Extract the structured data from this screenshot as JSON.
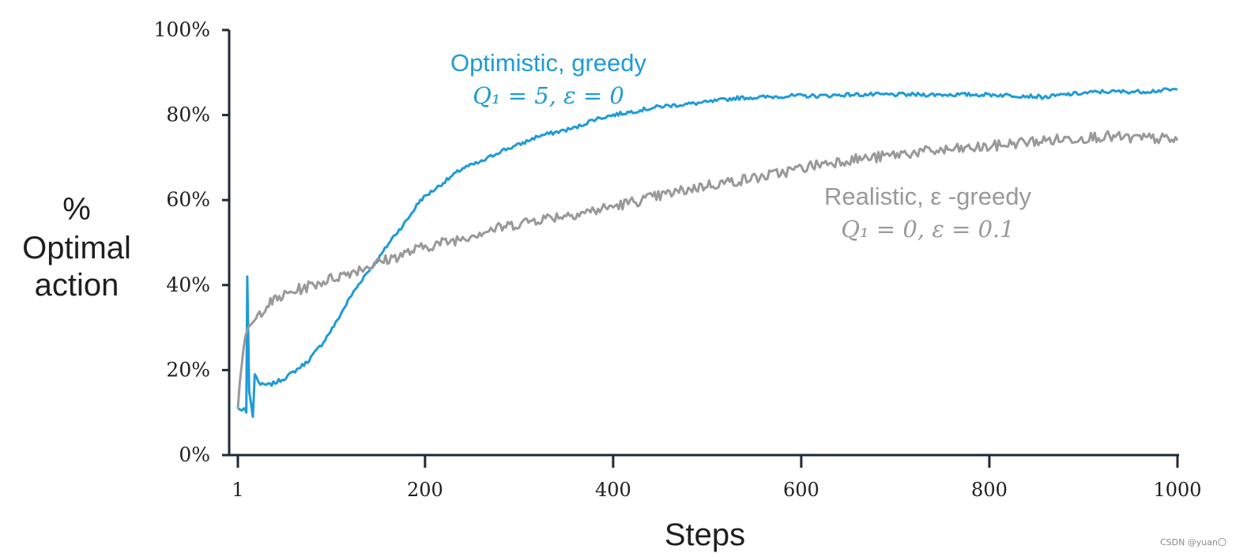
{
  "chart_data": {
    "type": "line",
    "title": "",
    "xlabel": "Steps",
    "ylabel_lines": [
      "%",
      "Optimal",
      "action"
    ],
    "xlim": [
      1,
      1000
    ],
    "ylim": [
      0,
      100
    ],
    "x_ticks": [
      1,
      200,
      400,
      600,
      800,
      1000
    ],
    "x_tick_labels": [
      "1",
      "200",
      "400",
      "600",
      "800",
      "1000"
    ],
    "y_ticks": [
      0,
      20,
      40,
      60,
      80,
      100
    ],
    "y_tick_labels": [
      "0%",
      "20%",
      "40%",
      "60%",
      "80%",
      "100%"
    ],
    "grid": false,
    "series": [
      {
        "name": "Optimistic, greedy",
        "params": "Q₁ = 5,  ε = 0",
        "color": "#1e9bd7",
        "points": [
          [
            1,
            11
          ],
          [
            5,
            10.5
          ],
          [
            8,
            11
          ],
          [
            10,
            10
          ],
          [
            11,
            42
          ],
          [
            13,
            15
          ],
          [
            15,
            12
          ],
          [
            17,
            9
          ],
          [
            19,
            19
          ],
          [
            25,
            16.5
          ],
          [
            35,
            16.5
          ],
          [
            50,
            18
          ],
          [
            60,
            19.5
          ],
          [
            75,
            22
          ],
          [
            90,
            26
          ],
          [
            105,
            31
          ],
          [
            120,
            37
          ],
          [
            135,
            42
          ],
          [
            150,
            46
          ],
          [
            165,
            51
          ],
          [
            180,
            55
          ],
          [
            195,
            60
          ],
          [
            210,
            62.5
          ],
          [
            225,
            65
          ],
          [
            240,
            67.5
          ],
          [
            260,
            69
          ],
          [
            280,
            71.5
          ],
          [
            300,
            73
          ],
          [
            320,
            75
          ],
          [
            340,
            76
          ],
          [
            360,
            77
          ],
          [
            380,
            79
          ],
          [
            400,
            80
          ],
          [
            425,
            81
          ],
          [
            450,
            82
          ],
          [
            475,
            82.5
          ],
          [
            500,
            83
          ],
          [
            530,
            84
          ],
          [
            560,
            84.2
          ],
          [
            590,
            84.5
          ],
          [
            620,
            84.5
          ],
          [
            650,
            84.8
          ],
          [
            700,
            84.8
          ],
          [
            750,
            84.8
          ],
          [
            800,
            84.8
          ],
          [
            840,
            84.5
          ],
          [
            860,
            84.2
          ],
          [
            880,
            84.8
          ],
          [
            920,
            85.5
          ],
          [
            960,
            85.5
          ],
          [
            1000,
            86
          ]
        ]
      },
      {
        "name": "Realistic, ε-greedy",
        "params": "Q₁ = 0,  ε = 0.1",
        "color": "#999999",
        "points": [
          [
            1,
            11
          ],
          [
            3,
            17
          ],
          [
            5,
            21
          ],
          [
            7,
            25
          ],
          [
            9,
            28
          ],
          [
            12,
            30
          ],
          [
            20,
            32
          ],
          [
            30,
            35
          ],
          [
            45,
            37
          ],
          [
            60,
            38.5
          ],
          [
            80,
            40
          ],
          [
            100,
            41.5
          ],
          [
            120,
            43
          ],
          [
            140,
            44.5
          ],
          [
            160,
            46
          ],
          [
            180,
            47.5
          ],
          [
            200,
            49
          ],
          [
            230,
            50.5
          ],
          [
            260,
            52.5
          ],
          [
            290,
            54
          ],
          [
            320,
            55.5
          ],
          [
            350,
            56.5
          ],
          [
            380,
            57.5
          ],
          [
            410,
            59
          ],
          [
            440,
            60.5
          ],
          [
            470,
            62
          ],
          [
            500,
            63.5
          ],
          [
            530,
            64.5
          ],
          [
            560,
            65.5
          ],
          [
            590,
            67
          ],
          [
            620,
            68.5
          ],
          [
            650,
            69.5
          ],
          [
            680,
            70
          ],
          [
            710,
            71
          ],
          [
            740,
            71.5
          ],
          [
            770,
            72
          ],
          [
            800,
            72.5
          ],
          [
            830,
            73.5
          ],
          [
            860,
            74
          ],
          [
            890,
            74.5
          ],
          [
            920,
            75
          ],
          [
            950,
            74.5
          ],
          [
            980,
            74.5
          ],
          [
            1000,
            74
          ]
        ]
      }
    ],
    "annotations": [
      {
        "series": 0,
        "line1": "Optimistic, greedy",
        "line2": "Q₁ = 5,  ε = 0"
      },
      {
        "series": 1,
        "line1": "Realistic, ε -greedy",
        "line2": "Q₁ = 0,  ε = 0.1"
      }
    ]
  },
  "watermark": "CSDN @yuan〇"
}
